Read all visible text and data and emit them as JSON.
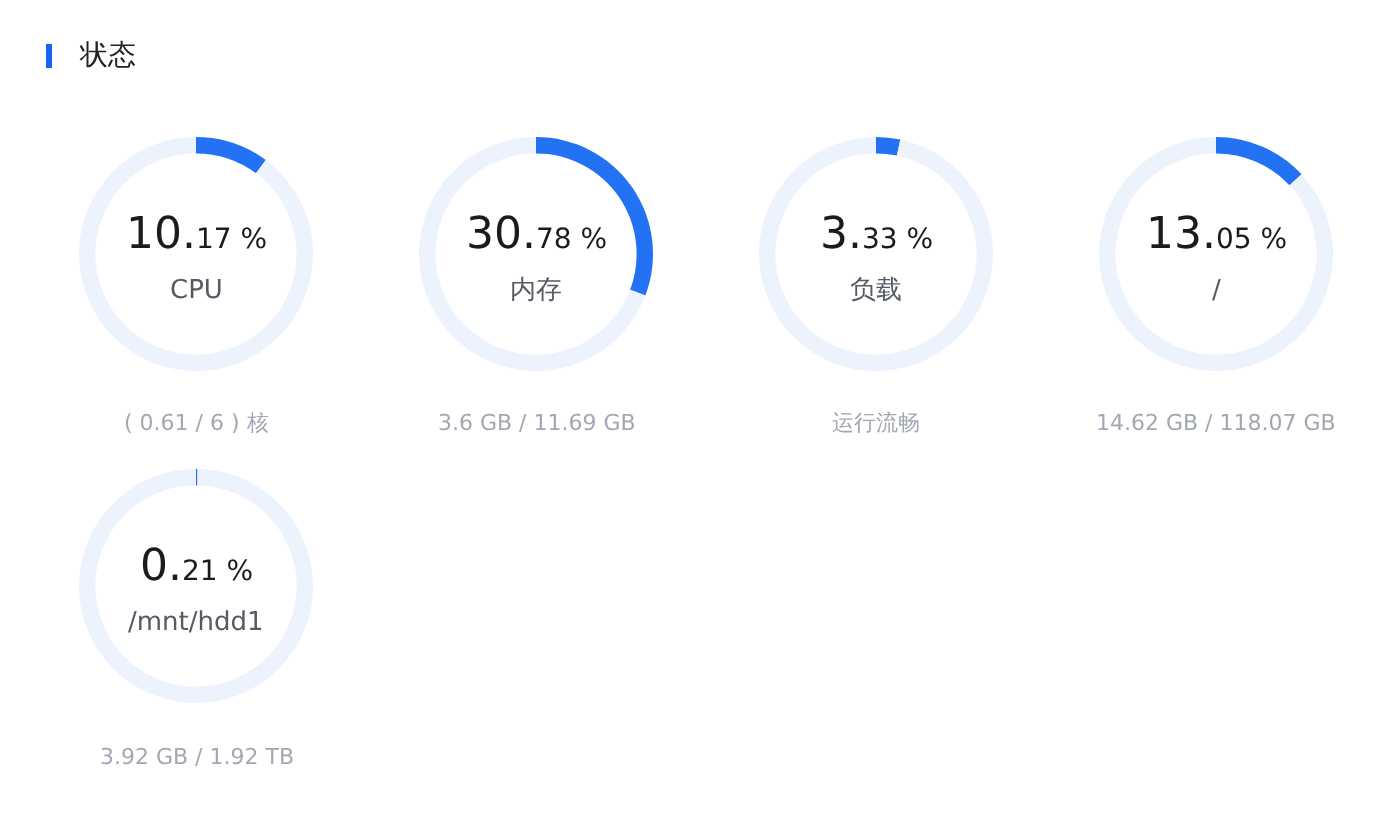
{
  "chart_data": [
    {
      "type": "donut",
      "title": "状态",
      "categories": [
        "CPU",
        null
      ],
      "values": [
        10.17,
        89.83
      ],
      "colors": [
        "#2272f3",
        "#edf3fd"
      ],
      "value_labels": [
        "10.17 %",
        null
      ],
      "annotations": [
        "( 0.61 / 6 ) 核"
      ]
    },
    {
      "type": "donut",
      "categories": [
        "内存",
        null
      ],
      "values": [
        30.78,
        69.22
      ],
      "colors": [
        "#2272f3",
        "#edf3fd"
      ],
      "value_labels": [
        "30.78 %",
        null
      ],
      "annotations": [
        "3.6 GB / 11.69 GB"
      ]
    },
    {
      "type": "donut",
      "categories": [
        "负载",
        null
      ],
      "values": [
        3.33,
        96.67
      ],
      "colors": [
        "#2272f3",
        "#edf3fd"
      ],
      "value_labels": [
        "3.33 %",
        null
      ],
      "annotations": [
        "运行流畅"
      ]
    },
    {
      "type": "donut",
      "categories": [
        "/",
        null
      ],
      "values": [
        13.05,
        86.95
      ],
      "colors": [
        "#2272f3",
        "#edf3fd"
      ],
      "value_labels": [
        "13.05 %",
        null
      ],
      "annotations": [
        "14.62 GB / 118.07 GB"
      ]
    },
    {
      "type": "donut",
      "categories": [
        "/mnt/hdd1",
        null
      ],
      "values": [
        0.21,
        99.79
      ],
      "colors": [
        "#2272f3",
        "#edf3fd"
      ],
      "value_labels": [
        "0.21 %",
        null
      ],
      "annotations": [
        "3.92 GB / 1.92 TB"
      ]
    }
  ]
}
